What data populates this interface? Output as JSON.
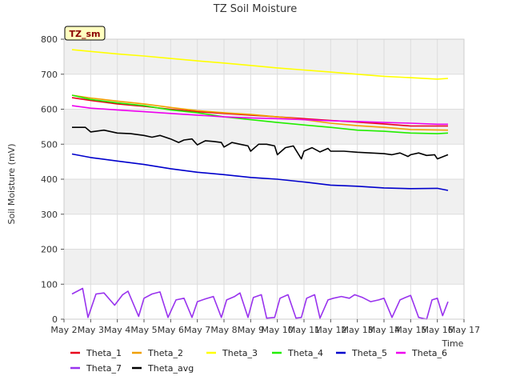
{
  "chart_data": {
    "type": "line",
    "title": "TZ Soil Moisture",
    "xlabel": "Time",
    "ylabel": "Soil Moisture (mV)",
    "ylim": [
      0,
      800
    ],
    "xlim": [
      2,
      17
    ],
    "yticks": [
      0,
      100,
      200,
      300,
      400,
      500,
      600,
      700,
      800
    ],
    "xticks": [
      2,
      3,
      4,
      5,
      6,
      7,
      8,
      9,
      10,
      11,
      12,
      13,
      14,
      15,
      16,
      17
    ],
    "xtick_labels": [
      "May 2",
      "May 3",
      "May 4",
      "May 5",
      "May 6",
      "May 7",
      "May 8",
      "May 9",
      "May 10",
      "May 11",
      "May 12",
      "May 13",
      "May 14",
      "May 15",
      "May 16",
      "May 17"
    ],
    "annotation": "TZ_sm",
    "legend_position": "bottom",
    "series": [
      {
        "name": "Theta_1",
        "color": "#e8001c",
        "x": [
          2.3,
          3,
          4,
          5,
          6,
          7,
          8,
          9,
          10,
          11,
          12,
          13,
          14,
          15,
          16.4
        ],
        "values": [
          633,
          625,
          615,
          608,
          600,
          593,
          588,
          583,
          578,
          573,
          568,
          563,
          558,
          552,
          552
        ]
      },
      {
        "name": "Theta_2",
        "color": "#f0a000",
        "x": [
          2.3,
          3,
          4,
          5,
          6,
          7,
          8,
          9,
          10,
          11,
          12,
          13,
          14,
          15,
          16.4
        ],
        "values": [
          640,
          632,
          623,
          615,
          605,
          596,
          590,
          585,
          578,
          570,
          560,
          553,
          548,
          542,
          540
        ]
      },
      {
        "name": "Theta_3",
        "color": "#ffff00",
        "x": [
          2.3,
          3,
          4,
          5,
          6,
          7,
          8,
          9,
          10,
          11,
          12,
          13,
          14,
          15,
          16,
          16.4
        ],
        "values": [
          770,
          765,
          758,
          752,
          745,
          738,
          732,
          725,
          718,
          712,
          706,
          700,
          694,
          690,
          686,
          688
        ]
      },
      {
        "name": "Theta_4",
        "color": "#22ee00",
        "x": [
          2.3,
          3,
          4,
          5,
          6,
          7,
          8,
          9,
          10,
          11,
          12,
          13,
          14,
          15,
          16,
          16.4
        ],
        "values": [
          640,
          628,
          618,
          610,
          598,
          590,
          578,
          570,
          562,
          555,
          548,
          540,
          537,
          532,
          530,
          532
        ]
      },
      {
        "name": "Theta_5",
        "color": "#0000cc",
        "x": [
          2.3,
          3,
          4,
          5,
          6,
          7,
          8,
          9,
          10,
          11,
          12,
          13,
          14,
          15,
          16,
          16.4
        ],
        "values": [
          472,
          462,
          452,
          442,
          430,
          420,
          413,
          405,
          400,
          392,
          383,
          380,
          375,
          373,
          374,
          368
        ]
      },
      {
        "name": "Theta_6",
        "color": "#ee00ee",
        "x": [
          2.3,
          3,
          4,
          5,
          6,
          7,
          8,
          9,
          10,
          11,
          12,
          13,
          14,
          15,
          16,
          16.4
        ],
        "values": [
          610,
          603,
          598,
          593,
          588,
          583,
          578,
          575,
          573,
          570,
          567,
          565,
          562,
          560,
          557,
          557
        ]
      },
      {
        "name": "Theta_7",
        "color": "#9933ee",
        "x": [
          2.3,
          2.7,
          2.9,
          3.2,
          3.5,
          3.9,
          4.2,
          4.4,
          4.8,
          5.0,
          5.3,
          5.6,
          5.9,
          6.2,
          6.5,
          6.8,
          7.0,
          7.3,
          7.6,
          7.9,
          8.1,
          8.4,
          8.6,
          8.9,
          9.1,
          9.4,
          9.6,
          9.9,
          10.1,
          10.4,
          10.7,
          10.9,
          11.1,
          11.4,
          11.6,
          11.9,
          12.1,
          12.4,
          12.7,
          12.9,
          13.2,
          13.5,
          13.8,
          14.0,
          14.3,
          14.6,
          14.8,
          15.0,
          15.3,
          15.6,
          15.8,
          16.0,
          16.2,
          16.4
        ],
        "values": [
          72,
          88,
          5,
          72,
          75,
          40,
          70,
          80,
          8,
          60,
          72,
          78,
          5,
          55,
          60,
          5,
          50,
          58,
          65,
          5,
          55,
          65,
          75,
          5,
          62,
          70,
          3,
          5,
          60,
          70,
          3,
          5,
          60,
          70,
          3,
          55,
          60,
          65,
          60,
          70,
          62,
          50,
          55,
          60,
          5,
          55,
          62,
          68,
          5,
          0,
          55,
          60,
          10,
          50
        ]
      },
      {
        "name": "Theta_avg",
        "color": "#000000",
        "x": [
          2.3,
          2.8,
          3.0,
          3.5,
          4.0,
          4.5,
          5.0,
          5.3,
          5.6,
          6.0,
          6.3,
          6.5,
          6.8,
          7.0,
          7.3,
          7.6,
          7.9,
          8.0,
          8.3,
          8.6,
          8.9,
          9.0,
          9.3,
          9.6,
          9.9,
          10.0,
          10.3,
          10.6,
          10.9,
          11.0,
          11.3,
          11.6,
          11.9,
          12.0,
          12.5,
          13.0,
          13.5,
          14.0,
          14.3,
          14.6,
          14.9,
          15.0,
          15.3,
          15.6,
          15.9,
          16.0,
          16.4
        ],
        "values": [
          548,
          548,
          535,
          540,
          532,
          530,
          525,
          520,
          525,
          515,
          505,
          512,
          515,
          498,
          510,
          508,
          505,
          492,
          505,
          500,
          495,
          480,
          500,
          500,
          495,
          470,
          490,
          495,
          458,
          480,
          490,
          478,
          488,
          480,
          480,
          477,
          475,
          473,
          470,
          475,
          465,
          470,
          475,
          468,
          470,
          458,
          470
        ]
      }
    ]
  }
}
